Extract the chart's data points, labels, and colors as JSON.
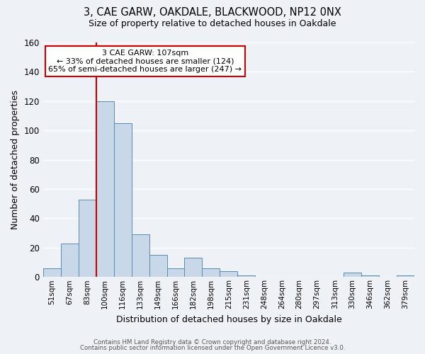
{
  "title": "3, CAE GARW, OAKDALE, BLACKWOOD, NP12 0NX",
  "subtitle": "Size of property relative to detached houses in Oakdale",
  "xlabel": "Distribution of detached houses by size in Oakdale",
  "ylabel": "Number of detached properties",
  "bar_labels": [
    "51sqm",
    "67sqm",
    "83sqm",
    "100sqm",
    "116sqm",
    "133sqm",
    "149sqm",
    "166sqm",
    "182sqm",
    "198sqm",
    "215sqm",
    "231sqm",
    "248sqm",
    "264sqm",
    "280sqm",
    "297sqm",
    "313sqm",
    "330sqm",
    "346sqm",
    "362sqm",
    "379sqm"
  ],
  "bar_values": [
    6,
    23,
    53,
    120,
    105,
    29,
    15,
    6,
    13,
    6,
    4,
    1,
    0,
    0,
    0,
    0,
    0,
    3,
    1,
    0,
    1
  ],
  "bar_color": "#c8d8e8",
  "bar_edge_color": "#5a8ab0",
  "ylim": [
    0,
    160
  ],
  "yticks": [
    0,
    20,
    40,
    60,
    80,
    100,
    120,
    140,
    160
  ],
  "annotation_title": "3 CAE GARW: 107sqm",
  "annotation_line1": "← 33% of detached houses are smaller (124)",
  "annotation_line2": "65% of semi-detached houses are larger (247) →",
  "annotation_box_color": "#ffffff",
  "annotation_box_edge": "#cc0000",
  "red_line_color": "#cc0000",
  "red_line_x": 2.5,
  "footer_line1": "Contains HM Land Registry data © Crown copyright and database right 2024.",
  "footer_line2": "Contains public sector information licensed under the Open Government Licence v3.0.",
  "background_color": "#eef2f7",
  "grid_color": "#ffffff",
  "fig_width": 6.0,
  "fig_height": 5.0,
  "dpi": 100
}
